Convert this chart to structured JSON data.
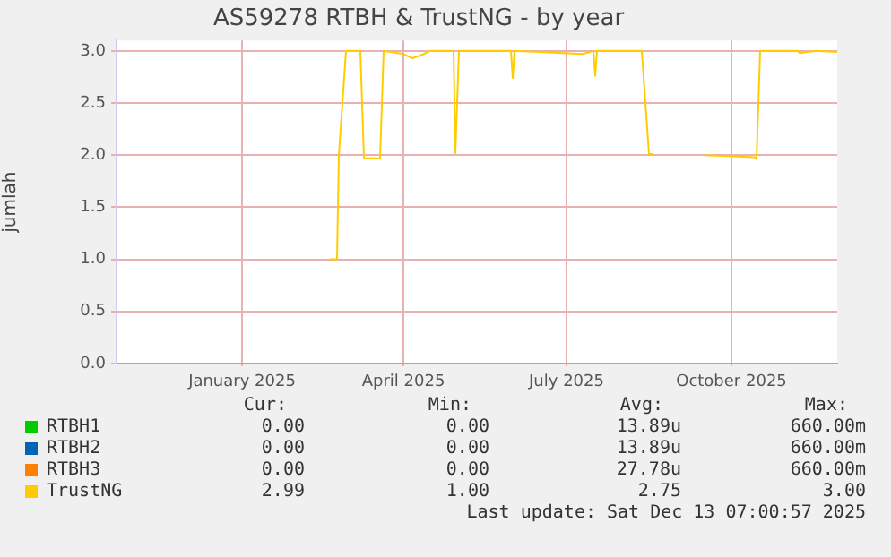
{
  "chart_data": {
    "type": "line",
    "title": "AS59278 RTBH & TrustNG - by year",
    "ylabel": "jumlah",
    "xlim": [
      "2024-10-23",
      "2025-11-29"
    ],
    "xticks": [
      {
        "value": "2025-01-01",
        "label": "January 2025"
      },
      {
        "value": "2025-04-01",
        "label": "April 2025"
      },
      {
        "value": "2025-07-01",
        "label": "July 2025"
      },
      {
        "value": "2025-10-01",
        "label": "October 2025"
      }
    ],
    "ylim": [
      0,
      3.1
    ],
    "yticks": [
      {
        "value": 0,
        "label": "0.0"
      },
      {
        "value": 0.5,
        "label": "0.5"
      },
      {
        "value": 1,
        "label": "1.0"
      },
      {
        "value": 1.5,
        "label": "1.5"
      },
      {
        "value": 2,
        "label": "2.0"
      },
      {
        "value": 2.5,
        "label": "2.5"
      },
      {
        "value": 3,
        "label": "3.0"
      }
    ],
    "grid": true,
    "legend": "bottom",
    "marker": "none",
    "line_style": "solid",
    "series": [
      {
        "name": "RTBH1",
        "color": "#00cc00"
      },
      {
        "name": "RTBH2",
        "color": "#0066b3"
      },
      {
        "name": "RTBH3",
        "color": "#ff8000"
      },
      {
        "name": "TrustNG",
        "color": "#ffcc00",
        "x": [
          "2025-02-19",
          "2025-02-23",
          "2025-02-24",
          "2025-02-28",
          "2025-03-08",
          "2025-03-10",
          "2025-03-19",
          "2025-03-21",
          "2025-04-01",
          "2025-04-06",
          "2025-04-11",
          "2025-04-16",
          "2025-04-29",
          "2025-04-30",
          "2025-05-02",
          "2025-05-31",
          "2025-06-01",
          "2025-06-02",
          "2025-07-10",
          "2025-07-16",
          "2025-07-17",
          "2025-07-18",
          "2025-08-12",
          "2025-08-16",
          "2025-08-18",
          "2025-08-29",
          "2025-09-16",
          "2025-10-14",
          "2025-10-15",
          "2025-10-17",
          "2025-11-07",
          "2025-11-08",
          "2025-11-17",
          "2025-11-29"
        ],
        "values": [
          1,
          1,
          2,
          3,
          3,
          1.97,
          1.97,
          3,
          2.97,
          2.93,
          2.96,
          3,
          3,
          2.02,
          3,
          3,
          2.74,
          3,
          2.97,
          3,
          2.76,
          3,
          3,
          2.01,
          2.01,
          null,
          2,
          1.98,
          1.96,
          3,
          3,
          2.98,
          3,
          2.99
        ]
      }
    ],
    "annotations": [
      "Cur:",
      "Min:",
      "Avg:",
      "Max:",
      "0.00",
      "0.00",
      "13.89u",
      "660.00m",
      "0.00",
      "0.00",
      "13.89u",
      "660.00m",
      "0.00",
      "0.00",
      "27.78u",
      "660.00m",
      "2.99",
      "1.00",
      "2.75",
      "3.00",
      "Last update: Sat Dec 13 07:00:57 2025"
    ]
  }
}
